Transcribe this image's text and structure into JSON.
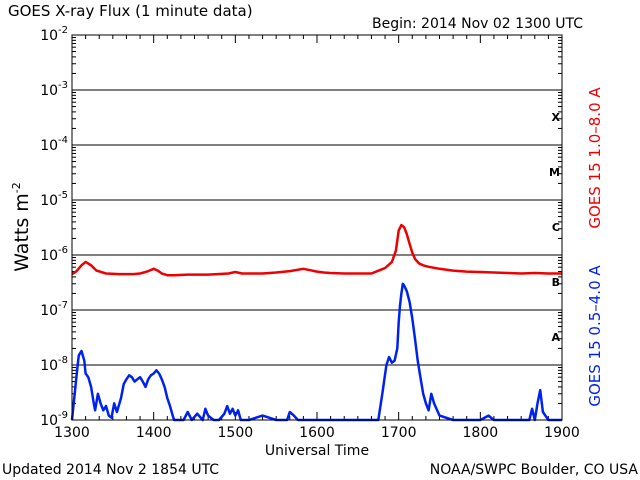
{
  "chart_data": {
    "type": "line",
    "title": "GOES X-ray Flux (1 minute data)",
    "begin_label": "Begin: 2014 Nov 02 1300 UTC",
    "xlabel": "Universal Time",
    "ylabel_main": "Watts m",
    "ylabel_sup": "-2",
    "updated_label": "Updated 2014 Nov  2 1854 UTC",
    "credit_label": "NOAA/SWPC Boulder, CO USA",
    "x_unit": "minutes after 1300 UTC",
    "xlim": [
      0,
      360
    ],
    "x_ticks": [
      {
        "value": 0,
        "label": "1300"
      },
      {
        "value": 60,
        "label": "1400"
      },
      {
        "value": 120,
        "label": "1500"
      },
      {
        "value": 180,
        "label": "1600"
      },
      {
        "value": 240,
        "label": "1700"
      },
      {
        "value": 300,
        "label": "1800"
      },
      {
        "value": 360,
        "label": "1900"
      }
    ],
    "y_scale": "log",
    "ylim": [
      1e-09,
      0.01
    ],
    "y_ticks": [
      {
        "value": 0.01,
        "base": "10",
        "exp": "-2"
      },
      {
        "value": 0.001,
        "base": "10",
        "exp": "-3"
      },
      {
        "value": 0.0001,
        "base": "10",
        "exp": "-4"
      },
      {
        "value": 1e-05,
        "base": "10",
        "exp": "-5"
      },
      {
        "value": 1e-06,
        "base": "10",
        "exp": "-6"
      },
      {
        "value": 1e-07,
        "base": "10",
        "exp": "-7"
      },
      {
        "value": 1e-08,
        "base": "10",
        "exp": "-8"
      },
      {
        "value": 1e-09,
        "base": "10",
        "exp": "-9"
      }
    ],
    "flare_classes": [
      {
        "label": "X",
        "value": 0.00032
      },
      {
        "label": "M",
        "value": 3.2e-05
      },
      {
        "label": "C",
        "value": 3.2e-06
      },
      {
        "label": "B",
        "value": 3.2e-07
      },
      {
        "label": "A",
        "value": 3.2e-08
      }
    ],
    "grid": true,
    "series": [
      {
        "name": "GOES 15 1.0–8.0 A",
        "color": "#ee0000",
        "x": [
          0,
          3,
          7,
          10,
          14,
          18,
          25,
          35,
          45,
          50,
          55,
          60,
          63,
          66,
          70,
          75,
          85,
          100,
          115,
          120,
          125,
          130,
          140,
          150,
          160,
          170,
          175,
          180,
          185,
          190,
          200,
          210,
          220,
          230,
          235,
          238,
          240,
          242,
          244,
          246,
          248,
          250,
          252,
          255,
          258,
          262,
          270,
          280,
          290,
          300,
          310,
          320,
          330,
          340,
          350,
          360
        ],
        "y": [
          4.5e-07,
          5e-07,
          6.5e-07,
          7.5e-07,
          6.5e-07,
          5.2e-07,
          4.6e-07,
          4.5e-07,
          4.5e-07,
          4.6e-07,
          5e-07,
          5.6e-07,
          5.2e-07,
          4.6e-07,
          4.3e-07,
          4.3e-07,
          4.4e-07,
          4.4e-07,
          4.6e-07,
          4.9e-07,
          4.6e-07,
          4.6e-07,
          4.6e-07,
          4.8e-07,
          5.1e-07,
          5.6e-07,
          5.3e-07,
          5e-07,
          4.8e-07,
          4.7e-07,
          4.6e-07,
          4.6e-07,
          4.6e-07,
          5.8e-07,
          7.5e-07,
          1.2e-06,
          2.8e-06,
          3.5e-06,
          3.2e-06,
          2.4e-06,
          1.6e-06,
          1.1e-06,
          8.5e-07,
          7e-07,
          6.5e-07,
          6.1e-07,
          5.6e-07,
          5.2e-07,
          5e-07,
          4.9e-07,
          4.8e-07,
          4.7e-07,
          4.6e-07,
          4.7e-07,
          4.6e-07,
          4.6e-07
        ]
      },
      {
        "name": "GOES 15 0.5–4.0 A",
        "color": "#0022ee",
        "x": [
          0,
          2,
          4,
          5,
          7,
          9,
          10,
          12,
          14,
          16,
          17,
          19,
          21,
          23,
          25,
          27,
          29,
          31,
          33,
          36,
          38,
          40,
          42,
          44,
          46,
          48,
          50,
          52,
          54,
          56,
          58,
          60,
          62,
          64,
          66,
          68,
          70,
          72,
          74,
          75,
          76,
          78,
          80,
          82,
          85,
          88,
          92,
          96,
          98,
          100,
          104,
          108,
          112,
          114,
          116,
          118,
          120,
          122,
          124,
          126,
          130,
          140,
          150,
          158,
          160,
          163,
          166,
          170,
          180,
          190,
          200,
          210,
          220,
          225,
          228,
          231,
          233,
          235,
          237,
          239,
          240,
          241,
          242,
          243,
          244,
          246,
          248,
          250,
          252,
          254,
          256,
          258,
          260,
          262,
          264,
          266,
          270,
          280,
          300,
          306,
          310,
          320,
          330,
          336,
          338,
          340,
          342,
          344,
          346,
          350,
          355,
          360
        ],
        "y": [
          1e-09,
          3e-09,
          9e-09,
          1.5e-08,
          1.8e-08,
          1.2e-08,
          7e-09,
          6e-09,
          4e-09,
          2e-09,
          1.5e-09,
          3e-09,
          2e-09,
          1.5e-09,
          1.8e-09,
          1.2e-09,
          1.1e-09,
          2e-09,
          1.4e-09,
          2.5e-09,
          4.5e-09,
          5.5e-09,
          6.5e-09,
          6e-09,
          5e-09,
          5.5e-09,
          6e-09,
          5e-09,
          4e-09,
          5.5e-09,
          6.5e-09,
          7e-09,
          8e-09,
          7e-09,
          5.5e-09,
          4e-09,
          2.5e-09,
          1.8e-09,
          1.2e-09,
          1e-09,
          1e-09,
          1e-09,
          1e-09,
          1e-09,
          1.4e-09,
          1e-09,
          1.3e-09,
          1e-09,
          1.6e-09,
          1.2e-09,
          1e-09,
          1e-09,
          1.3e-09,
          1.8e-09,
          1.3e-09,
          1.6e-09,
          1.2e-09,
          1.5e-09,
          1e-09,
          1e-09,
          1e-09,
          1.2e-09,
          1e-09,
          1e-09,
          1.4e-09,
          1.2e-09,
          1e-09,
          1e-09,
          1e-09,
          1e-09,
          1e-09,
          1e-09,
          1e-09,
          1e-09,
          3e-09,
          1e-08,
          1.4e-08,
          1.1e-08,
          1.2e-08,
          2e-08,
          6e-08,
          1.2e-07,
          2e-07,
          3e-07,
          2.8e-07,
          2.2e-07,
          1.4e-07,
          7e-08,
          3e-08,
          1.2e-08,
          6e-09,
          3e-09,
          2e-09,
          1.5e-09,
          3e-09,
          2e-09,
          1.2e-09,
          1e-09,
          1e-09,
          1.2e-09,
          1e-09,
          1e-09,
          1e-09,
          1e-09,
          1.6e-09,
          1e-09,
          2e-09,
          3.5e-09,
          1.4e-09,
          1e-09,
          1e-09,
          1e-09
        ]
      }
    ]
  }
}
